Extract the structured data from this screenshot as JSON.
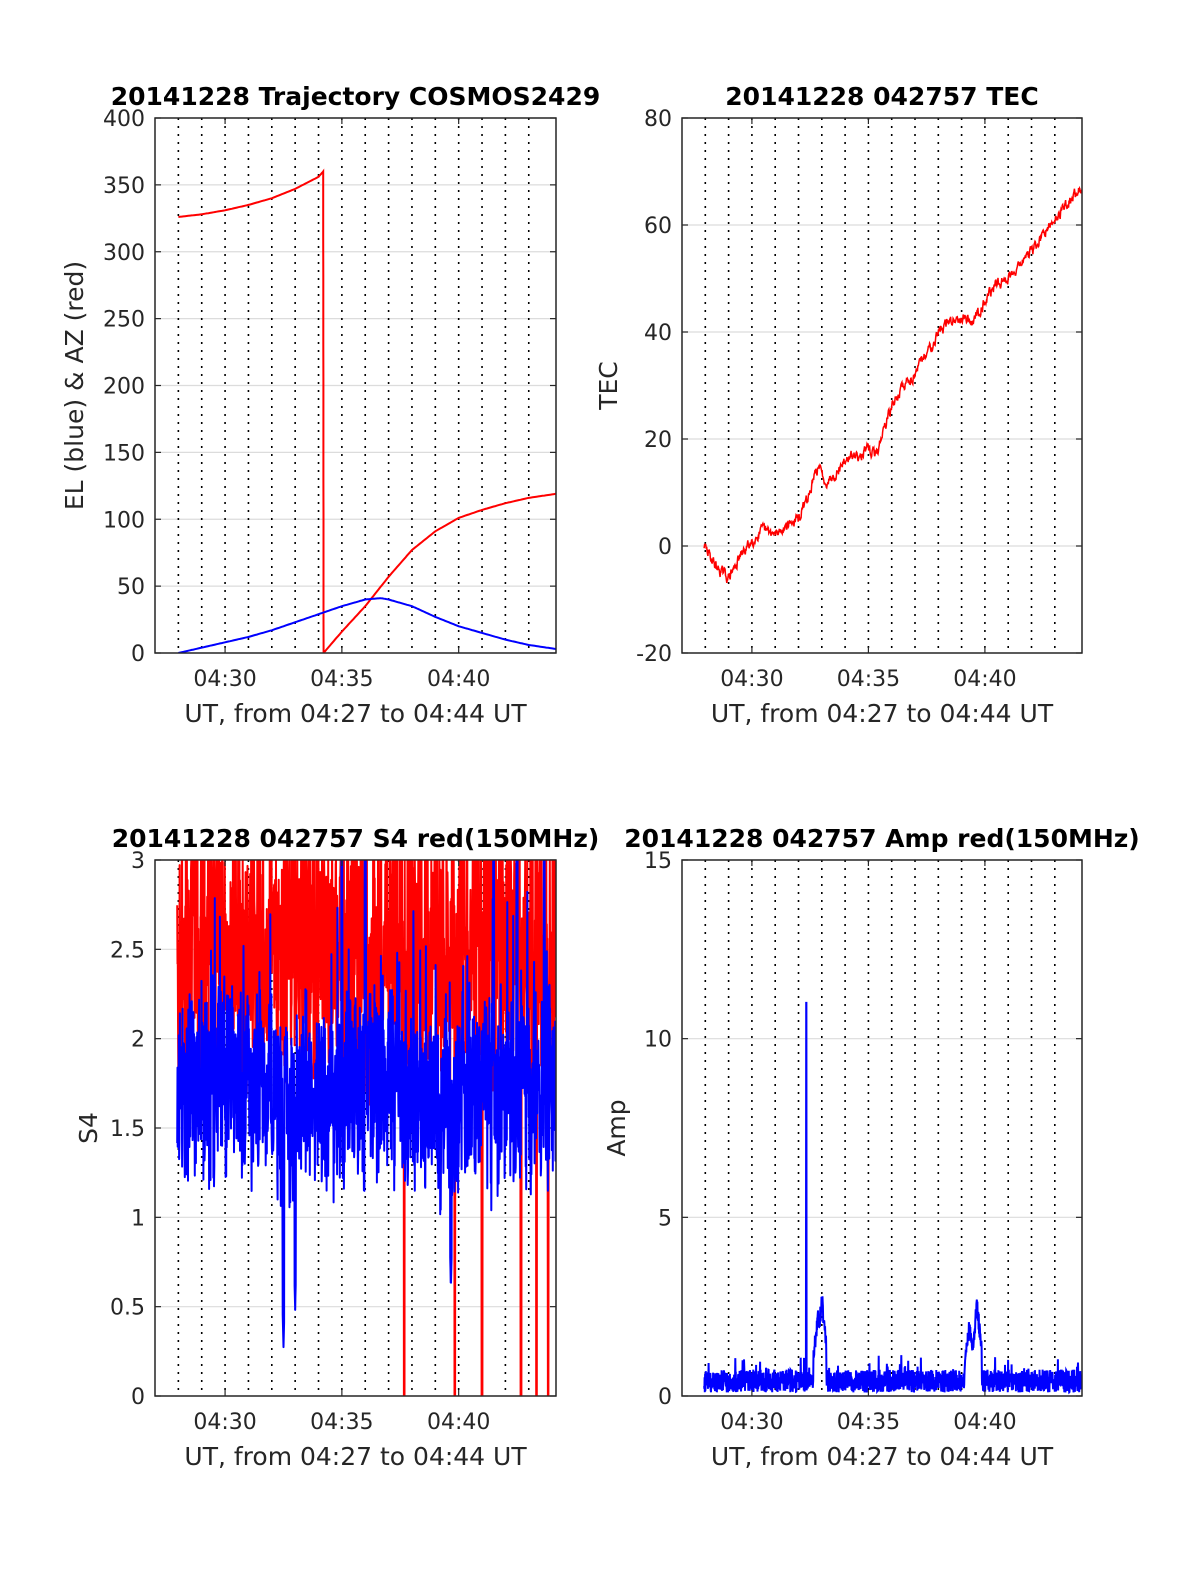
{
  "chart_data": [
    {
      "id": "trajectory",
      "type": "line",
      "title": "20141228 Trajectory COSMOS2429",
      "xlabel": "UT, from 04:27 to 04:44 UT",
      "ylabel": "EL (blue) & AZ (red)",
      "xlim": [
        "04:27:00",
        "04:44:10"
      ],
      "ylim": [
        0,
        400
      ],
      "xticks": [
        "04:30",
        "04:35",
        "04:40"
      ],
      "yticks": [
        0,
        50,
        100,
        150,
        200,
        250,
        300,
        350,
        400
      ],
      "x_grid_dotted_minutes": [
        "04:28",
        "04:29",
        "04:30",
        "04:31",
        "04:32",
        "04:33",
        "04:34",
        "04:35",
        "04:36",
        "04:37",
        "04:38",
        "04:39",
        "04:40",
        "04:41",
        "04:42",
        "04:43"
      ],
      "grid": true,
      "colors": {
        "az": "#ff0000",
        "el": "#0000ff"
      },
      "series": [
        {
          "key": "az",
          "color": "#ff0000",
          "x": [
            "04:28:00",
            "04:29:00",
            "04:30:00",
            "04:31:00",
            "04:32:00",
            "04:33:00",
            "04:34:00",
            "04:34:12",
            "04:34:13",
            "04:35:00",
            "04:36:00",
            "04:37:00",
            "04:38:00",
            "04:39:00",
            "04:40:00",
            "04:41:00",
            "04:42:00",
            "04:43:00",
            "04:44:10"
          ],
          "values": [
            326,
            328,
            331,
            335,
            340,
            347,
            356,
            360,
            0,
            16,
            35,
            57,
            77,
            91,
            101,
            107,
            112,
            116,
            119
          ]
        },
        {
          "key": "el",
          "color": "#0000ff",
          "x": [
            "04:28:00",
            "04:29:00",
            "04:30:00",
            "04:31:00",
            "04:32:00",
            "04:33:00",
            "04:34:00",
            "04:35:00",
            "04:36:00",
            "04:36:40",
            "04:37:00",
            "04:38:00",
            "04:39:00",
            "04:40:00",
            "04:41:00",
            "04:42:00",
            "04:43:00",
            "04:44:10"
          ],
          "values": [
            0,
            4,
            8,
            12,
            17,
            23,
            29,
            35,
            40,
            41,
            40,
            35,
            27,
            20,
            15,
            10,
            6,
            3
          ]
        }
      ]
    },
    {
      "id": "tec",
      "type": "line",
      "title": "20141228 042757 TEC",
      "xlabel": "UT, from 04:27 to 04:44 UT",
      "ylabel": "TEC",
      "xlim": [
        "04:27:00",
        "04:44:10"
      ],
      "ylim": [
        -20,
        80
      ],
      "xticks": [
        "04:30",
        "04:35",
        "04:40"
      ],
      "yticks": [
        -20,
        0,
        20,
        40,
        60,
        80
      ],
      "x_grid_dotted_minutes": [
        "04:28",
        "04:29",
        "04:30",
        "04:31",
        "04:32",
        "04:33",
        "04:34",
        "04:35",
        "04:36",
        "04:37",
        "04:38",
        "04:39",
        "04:40",
        "04:41",
        "04:42",
        "04:43"
      ],
      "grid": true,
      "colors": {
        "tec": "#ff0000"
      },
      "series": [
        {
          "key": "tec",
          "color": "#ff0000",
          "x": [
            "04:27:57",
            "04:28:30",
            "04:29:00",
            "04:29:30",
            "04:30:00",
            "04:30:30",
            "04:31:00",
            "04:31:30",
            "04:32:00",
            "04:32:30",
            "04:32:50",
            "04:33:10",
            "04:33:40",
            "04:34:00",
            "04:34:30",
            "04:35:00",
            "04:35:20",
            "04:35:40",
            "04:36:00",
            "04:36:30",
            "04:37:00",
            "04:37:30",
            "04:38:00",
            "04:38:30",
            "04:39:00",
            "04:39:30",
            "04:40:00",
            "04:40:30",
            "04:41:00",
            "04:41:30",
            "04:42:00",
            "04:42:30",
            "04:43:00",
            "04:43:30",
            "04:44:10"
          ],
          "values": [
            0,
            -4,
            -6,
            -2,
            1,
            3,
            2,
            4,
            5,
            10,
            15,
            12,
            14,
            16,
            17,
            18,
            17,
            22,
            26,
            30,
            32,
            36,
            40,
            42,
            43,
            42,
            46,
            49,
            50,
            53,
            55,
            58,
            61,
            64,
            67
          ]
        }
      ]
    },
    {
      "id": "s4",
      "type": "line",
      "title": "20141228 042757 S4 red(150MHz)",
      "xlabel": "UT, from 04:27 to 04:44 UT",
      "ylabel": "S4",
      "xlim": [
        "04:27:00",
        "04:44:10"
      ],
      "ylim": [
        0,
        3
      ],
      "xticks": [
        "04:30",
        "04:35",
        "04:40"
      ],
      "yticks": [
        "0",
        "0.5",
        "1",
        "1.5",
        "2",
        "2.5",
        "3"
      ],
      "x_grid_dotted_minutes": [
        "04:28",
        "04:29",
        "04:30",
        "04:31",
        "04:32",
        "04:33",
        "04:34",
        "04:35",
        "04:36",
        "04:37",
        "04:38",
        "04:39",
        "04:40",
        "04:41",
        "04:42",
        "04:43"
      ],
      "grid": true,
      "colors": {
        "red_channel": "#ff0000",
        "blue_channel": "#0000ff"
      },
      "series": [
        {
          "key": "red_channel",
          "color": "#ff0000",
          "x_start": "04:27:57",
          "x_end": "04:44:10",
          "typical_range": [
            1.8,
            3.0
          ],
          "dropouts_to_zero": [
            "04:37:40",
            "04:39:50",
            "04:41:00",
            "04:42:40",
            "04:43:20",
            "04:43:50"
          ]
        },
        {
          "key": "blue_channel",
          "color": "#0000ff",
          "x_start": "04:27:57",
          "x_end": "04:44:10",
          "typical_range": [
            1.2,
            2.2
          ],
          "minima": [
            {
              "x": "04:32:30",
              "value": 0.26
            },
            {
              "x": "04:33:00",
              "value": 0.48
            },
            {
              "x": "04:39:40",
              "value": 0.6
            }
          ],
          "peaks_to_top": [
            "04:35:00",
            "04:36:00",
            "04:41:30",
            "04:42:30",
            "04:43:40"
          ]
        }
      ]
    },
    {
      "id": "amp",
      "type": "line",
      "title": "20141228 042757 Amp red(150MHz)",
      "xlabel": "UT, from 04:27 to 04:44 UT",
      "ylabel": "Amp",
      "xlim": [
        "04:27:00",
        "04:44:10"
      ],
      "ylim": [
        0,
        15
      ],
      "xticks": [
        "04:30",
        "04:35",
        "04:40"
      ],
      "yticks": [
        0,
        5,
        10,
        15
      ],
      "x_grid_dotted_minutes": [
        "04:28",
        "04:29",
        "04:30",
        "04:31",
        "04:32",
        "04:33",
        "04:34",
        "04:35",
        "04:36",
        "04:37",
        "04:38",
        "04:39",
        "04:40",
        "04:41",
        "04:42",
        "04:43"
      ],
      "grid": true,
      "colors": {
        "amp": "#0000ff"
      },
      "series": [
        {
          "key": "amp",
          "color": "#0000ff",
          "x_start": "04:27:57",
          "x_end": "04:44:10",
          "baseline_range": [
            0.1,
            0.9
          ],
          "spikes": [
            {
              "x": "04:32:20",
              "value": 11.0
            },
            {
              "x": "04:32:50",
              "value": 2.5
            },
            {
              "x": "04:33:00",
              "value": 3.1
            },
            {
              "x": "04:39:20",
              "value": 2.2
            },
            {
              "x": "04:39:40",
              "value": 2.9
            }
          ]
        }
      ]
    }
  ]
}
